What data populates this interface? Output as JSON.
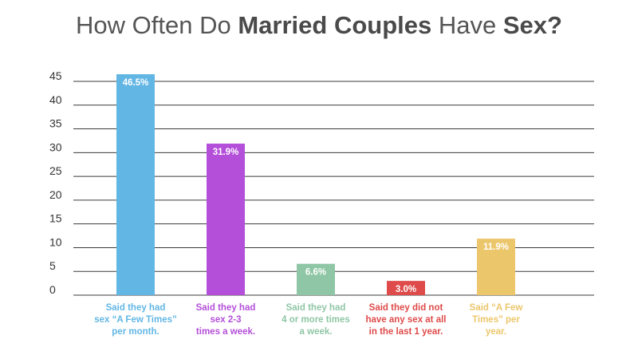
{
  "title": {
    "part1": "How Often Do ",
    "bold1": "Married Couples",
    "part2": " Have ",
    "bold2": "Sex?"
  },
  "chart_data": {
    "type": "bar",
    "title": "How Often Do Married Couples Have Sex?",
    "xlabel": "",
    "ylabel": "",
    "ylim": [
      0,
      45
    ],
    "yticks": [
      0,
      5,
      10,
      15,
      20,
      25,
      30,
      35,
      40,
      45
    ],
    "grid": true,
    "legend": "none",
    "categories": [
      [
        "Said they had",
        "sex “A Few Times”",
        "per month."
      ],
      [
        "Said they had",
        "sex 2-3",
        "times a week."
      ],
      [
        "Said they had",
        "4 or more times",
        "a week."
      ],
      [
        "Said they did not",
        "have any sex at all",
        "in the last 1 year."
      ],
      [
        "Said “A Few",
        "Times” per",
        "year."
      ]
    ],
    "values": [
      46.5,
      31.9,
      6.6,
      3.0,
      11.9
    ],
    "data_labels": [
      "46.5%",
      "31.9%",
      "6.6%",
      "3.0%",
      "11.9%"
    ],
    "colors": [
      "#62b6e4",
      "#b44fd9",
      "#8fc6a5",
      "#df4a4a",
      "#ecc66b"
    ]
  }
}
